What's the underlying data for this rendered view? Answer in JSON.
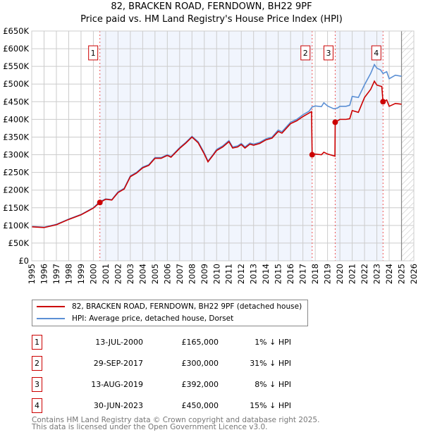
{
  "title": "82, BRACKEN ROAD, FERNDOWN, BH22 9PF",
  "subtitle": "Price paid vs. HM Land Registry's House Price Index (HPI)",
  "legend": [
    "82, BRACKEN ROAD, FERNDOWN, BH22 9PF (detached house)",
    "HPI: Average price, detached house, Dorset"
  ],
  "sales": [
    {
      "n": "1",
      "date": "13-JUL-2000",
      "price": "£165,000",
      "hpi": "1% ↓ HPI"
    },
    {
      "n": "2",
      "date": "29-SEP-2017",
      "price": "£300,000",
      "hpi": "31% ↓ HPI"
    },
    {
      "n": "3",
      "date": "13-AUG-2019",
      "price": "£392,000",
      "hpi": "8% ↓ HPI"
    },
    {
      "n": "4",
      "date": "30-JUN-2023",
      "price": "£450,000",
      "hpi": "15% ↓ HPI"
    }
  ],
  "footer": [
    "Contains HM Land Registry data © Crown copyright and database right 2025.",
    "This data is licensed under the Open Government Licence v3.0."
  ],
  "chart_data": {
    "type": "line",
    "title": "82, BRACKEN ROAD, FERNDOWN, BH22 9PF",
    "subtitle": "Price paid vs. HM Land Registry's House Price Index (HPI)",
    "xlim": [
      1995,
      2026
    ],
    "ylim": [
      0,
      650000
    ],
    "y_ticks": [
      "£0",
      "£50K",
      "£100K",
      "£150K",
      "£200K",
      "£250K",
      "£300K",
      "£350K",
      "£400K",
      "£450K",
      "£500K",
      "£550K",
      "£600K",
      "£650K"
    ],
    "x_ticks": [
      "1995",
      "1996",
      "1997",
      "1998",
      "1999",
      "2000",
      "2001",
      "2002",
      "2003",
      "2004",
      "2005",
      "2006",
      "2007",
      "2008",
      "2009",
      "2010",
      "2011",
      "2012",
      "2013",
      "2014",
      "2015",
      "2016",
      "2017",
      "2018",
      "2019",
      "2020",
      "2021",
      "2022",
      "2023",
      "2024",
      "2025",
      "2026"
    ],
    "forecast_start": 2025,
    "shaded_ranges": [
      [
        2000.53,
        2017.75
      ],
      [
        2019.62,
        2023.5
      ]
    ],
    "sale_points": [
      {
        "label": "1",
        "x": 2000.53,
        "y": 165000
      },
      {
        "label": "2",
        "x": 2017.75,
        "y": 300000
      },
      {
        "label": "3",
        "x": 2019.62,
        "y": 392000
      },
      {
        "label": "4",
        "x": 2023.5,
        "y": 450000
      }
    ],
    "series": [
      {
        "name": "HPI: Average price, detached house, Dorset",
        "color": "#5b8fd4",
        "points": [
          [
            1995,
            97000
          ],
          [
            1996,
            95000
          ],
          [
            1997,
            103000
          ],
          [
            1998,
            118000
          ],
          [
            1999,
            131000
          ],
          [
            2000,
            150000
          ],
          [
            2000.5,
            167000
          ],
          [
            2001,
            175000
          ],
          [
            2001.5,
            173000
          ],
          [
            2002,
            195000
          ],
          [
            2002.5,
            205000
          ],
          [
            2003,
            240000
          ],
          [
            2003.5,
            250000
          ],
          [
            2004,
            265000
          ],
          [
            2004.5,
            272000
          ],
          [
            2005,
            292000
          ],
          [
            2005.5,
            292000
          ],
          [
            2006,
            300000
          ],
          [
            2006.3,
            295000
          ],
          [
            2007,
            320000
          ],
          [
            2007.5,
            335000
          ],
          [
            2008,
            352000
          ],
          [
            2008.5,
            337000
          ],
          [
            2009,
            305000
          ],
          [
            2009.3,
            282000
          ],
          [
            2009.7,
            300000
          ],
          [
            2010,
            315000
          ],
          [
            2010.5,
            325000
          ],
          [
            2011,
            340000
          ],
          [
            2011.3,
            322000
          ],
          [
            2011.7,
            325000
          ],
          [
            2012,
            332000
          ],
          [
            2012.3,
            322000
          ],
          [
            2012.7,
            333000
          ],
          [
            2013,
            330000
          ],
          [
            2013.5,
            335000
          ],
          [
            2014,
            345000
          ],
          [
            2014.5,
            350000
          ],
          [
            2015,
            370000
          ],
          [
            2015.3,
            365000
          ],
          [
            2016,
            392000
          ],
          [
            2016.5,
            400000
          ],
          [
            2017,
            413000
          ],
          [
            2017.5,
            423000
          ],
          [
            2017.75,
            435000
          ],
          [
            2018,
            438000
          ],
          [
            2018.5,
            436000
          ],
          [
            2018.7,
            447000
          ],
          [
            2019,
            438000
          ],
          [
            2019.5,
            430000
          ],
          [
            2019.8,
            432000
          ],
          [
            2020,
            437000
          ],
          [
            2020.5,
            437000
          ],
          [
            2020.8,
            440000
          ],
          [
            2021,
            465000
          ],
          [
            2021.5,
            462000
          ],
          [
            2022,
            498000
          ],
          [
            2022.5,
            530000
          ],
          [
            2022.8,
            555000
          ],
          [
            2023,
            545000
          ],
          [
            2023.3,
            540000
          ],
          [
            2023.5,
            530000
          ],
          [
            2023.8,
            535000
          ],
          [
            2024,
            515000
          ],
          [
            2024.5,
            525000
          ],
          [
            2025,
            522000
          ]
        ]
      },
      {
        "name": "82, BRACKEN ROAD, FERNDOWN, BH22 9PF (detached house)",
        "color": "#cc0000",
        "points": [
          [
            1995,
            96000
          ],
          [
            1996,
            94000
          ],
          [
            1997,
            102000
          ],
          [
            1998,
            117000
          ],
          [
            1999,
            130000
          ],
          [
            2000,
            149000
          ],
          [
            2000.53,
            165000
          ],
          [
            2001,
            174000
          ],
          [
            2001.5,
            172000
          ],
          [
            2002,
            193000
          ],
          [
            2002.5,
            203000
          ],
          [
            2003,
            238000
          ],
          [
            2003.5,
            248000
          ],
          [
            2004,
            263000
          ],
          [
            2004.5,
            270000
          ],
          [
            2005,
            290000
          ],
          [
            2005.5,
            290000
          ],
          [
            2006,
            298000
          ],
          [
            2006.3,
            293000
          ],
          [
            2007,
            318000
          ],
          [
            2007.5,
            333000
          ],
          [
            2008,
            350000
          ],
          [
            2008.5,
            334000
          ],
          [
            2009,
            302000
          ],
          [
            2009.3,
            280000
          ],
          [
            2009.7,
            298000
          ],
          [
            2010,
            312000
          ],
          [
            2010.5,
            322000
          ],
          [
            2011,
            337000
          ],
          [
            2011.3,
            319000
          ],
          [
            2011.7,
            322000
          ],
          [
            2012,
            329000
          ],
          [
            2012.3,
            319000
          ],
          [
            2012.7,
            330000
          ],
          [
            2013,
            327000
          ],
          [
            2013.5,
            332000
          ],
          [
            2014,
            342000
          ],
          [
            2014.5,
            347000
          ],
          [
            2015,
            366000
          ],
          [
            2015.3,
            361000
          ],
          [
            2016,
            388000
          ],
          [
            2016.5,
            396000
          ],
          [
            2017,
            408000
          ],
          [
            2017.7,
            422000
          ],
          [
            2017.75,
            300000
          ],
          [
            2018,
            302000
          ],
          [
            2018.5,
            300000
          ],
          [
            2018.7,
            307000
          ],
          [
            2019,
            302000
          ],
          [
            2019.6,
            296000
          ],
          [
            2019.62,
            392000
          ],
          [
            2020,
            400000
          ],
          [
            2020.5,
            400000
          ],
          [
            2020.8,
            402000
          ],
          [
            2021,
            425000
          ],
          [
            2021.5,
            420000
          ],
          [
            2022,
            462000
          ],
          [
            2022.5,
            485000
          ],
          [
            2022.8,
            508000
          ],
          [
            2023,
            497000
          ],
          [
            2023.4,
            493000
          ],
          [
            2023.5,
            450000
          ],
          [
            2023.8,
            455000
          ],
          [
            2024,
            437000
          ],
          [
            2024.5,
            445000
          ],
          [
            2025,
            443000
          ]
        ]
      }
    ]
  }
}
